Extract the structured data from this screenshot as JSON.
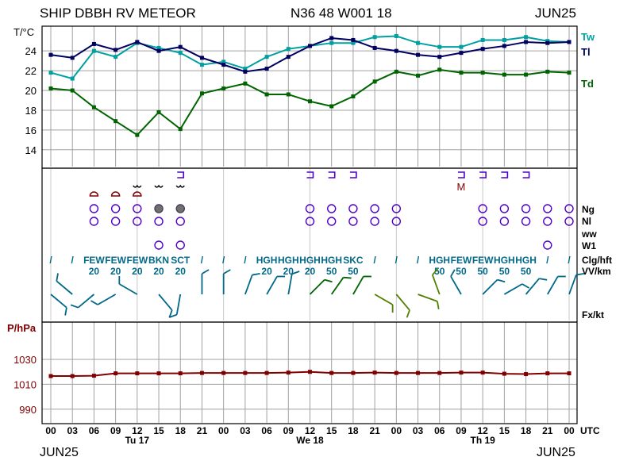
{
  "header": {
    "station": "SHIP DBBH RV METEOR",
    "position": "N36 48 W001 18",
    "month_left": "JUN25",
    "month_right": "JUN25"
  },
  "footer": {
    "month_left": "JUN25",
    "month_right": "JUN25"
  },
  "colors": {
    "tw": "#00a0a0",
    "tl": "#000060",
    "td": "#006400",
    "pressure": "#800000",
    "weather": "#5000c8",
    "ww_brown": "#800000",
    "cloud_code": "#006888",
    "grid": "#a0a0a0"
  },
  "chart_data": [
    {
      "type": "line",
      "ylabel": "T/°C",
      "yticks": [
        14,
        16,
        18,
        20,
        22,
        24
      ],
      "ylim": [
        12.3,
        26.5
      ],
      "x": [
        "00",
        "03",
        "06",
        "09",
        "12",
        "15",
        "18",
        "21",
        "00",
        "03",
        "06",
        "09",
        "12",
        "15",
        "18",
        "21",
        "00",
        "03",
        "06",
        "09",
        "12",
        "15",
        "18",
        "21",
        "00"
      ],
      "series": [
        {
          "name": "Tw",
          "values": [
            21.8,
            21.2,
            24.0,
            23.4,
            24.8,
            24.3,
            23.8,
            22.6,
            22.9,
            22.2,
            23.4,
            24.2,
            24.5,
            24.8,
            24.8,
            25.4,
            25.5,
            24.8,
            24.4,
            24.4,
            25.1,
            25.1,
            25.4,
            25.0,
            24.9
          ]
        },
        {
          "name": "Tl",
          "values": [
            23.6,
            23.3,
            24.7,
            24.1,
            24.9,
            24.0,
            24.4,
            23.3,
            22.6,
            21.9,
            22.2,
            23.4,
            24.5,
            25.3,
            25.1,
            24.3,
            24.0,
            23.6,
            23.4,
            23.8,
            24.2,
            24.5,
            24.9,
            24.8,
            24.9
          ]
        },
        {
          "name": "Td",
          "values": [
            20.2,
            20.0,
            18.3,
            16.9,
            15.5,
            17.8,
            16.1,
            19.7,
            20.2,
            20.7,
            19.6,
            19.6,
            18.9,
            18.4,
            19.4,
            20.9,
            21.9,
            21.5,
            22.1,
            21.8,
            21.8,
            21.6,
            21.6,
            21.9,
            21.8
          ]
        }
      ]
    },
    {
      "type": "line",
      "ylabel": "P/hPa",
      "yticks": [
        990,
        1010,
        1030
      ],
      "ylim": [
        979,
        1060
      ],
      "x": [
        "00",
        "03",
        "06",
        "09",
        "12",
        "15",
        "18",
        "21",
        "00",
        "03",
        "06",
        "09",
        "12",
        "15",
        "18",
        "21",
        "00",
        "03",
        "06",
        "09",
        "12",
        "15",
        "18",
        "21",
        "00"
      ],
      "series": [
        {
          "name": "P",
          "values": [
            1016.6,
            1016.6,
            1016.9,
            1018.8,
            1018.8,
            1018.8,
            1018.8,
            1019.1,
            1019.1,
            1019.1,
            1019.1,
            1019.4,
            1020.0,
            1019.1,
            1019.1,
            1019.4,
            1019.1,
            1019.1,
            1019.1,
            1019.4,
            1019.4,
            1018.5,
            1018.2,
            1018.8,
            1018.8
          ]
        }
      ]
    }
  ],
  "station_rows": {
    "labels": [
      "Ng",
      "Nl",
      "ww",
      "W1",
      "Clg/hft",
      "VV/km",
      "Fx/kt"
    ],
    "cloud_codes": [
      "/",
      "/",
      "FEW",
      "FEW",
      "FEW",
      "BKN",
      "SCT",
      "/",
      "/",
      "/",
      "HGH",
      "HGH",
      "HGH",
      "HGH",
      "SKC",
      "/",
      "/",
      "/",
      "HGH",
      "FEW",
      "FEW",
      "HGH",
      "HGH",
      "/",
      "/"
    ],
    "visibility": [
      "",
      "",
      "20",
      "20",
      "20",
      "20",
      "20",
      "",
      "",
      "",
      "20",
      "20",
      "20",
      "50",
      "50",
      "",
      "",
      "",
      "50",
      "50",
      "50",
      "50",
      "50",
      "",
      ""
    ],
    "wind_dirs": [
      130,
      310,
      230,
      240,
      300,
      140,
      190,
      0,
      0,
      20,
      30,
      10,
      45,
      35,
      30,
      120,
      140,
      110,
      340,
      330,
      45,
      60,
      40,
      30,
      20
    ],
    "high_cloud_marks": [
      false,
      false,
      false,
      false,
      false,
      false,
      true,
      false,
      false,
      false,
      false,
      false,
      true,
      true,
      true,
      false,
      false,
      false,
      false,
      true,
      true,
      true,
      true,
      false,
      false
    ]
  },
  "axis": {
    "hours": [
      "00",
      "03",
      "06",
      "09",
      "12",
      "15",
      "18",
      "21",
      "00",
      "03",
      "06",
      "09",
      "12",
      "15",
      "18",
      "21",
      "00",
      "03",
      "06",
      "09",
      "12",
      "15",
      "18",
      "21",
      "00"
    ],
    "utc": "UTC",
    "days": [
      "Tu 17",
      "We 18",
      "Th 19"
    ]
  }
}
